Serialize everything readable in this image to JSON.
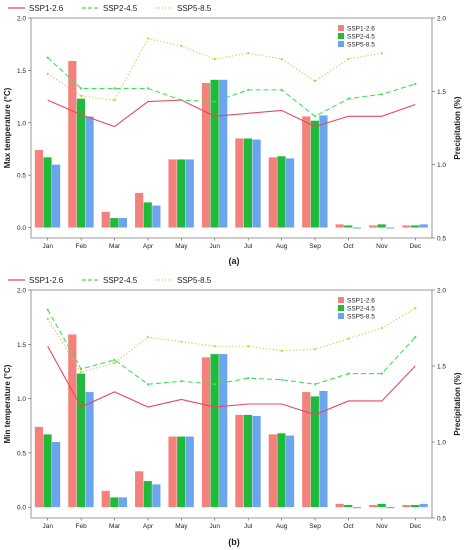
{
  "colors": {
    "ssp126": "#e5495f",
    "ssp245": "#3fe05a",
    "ssp585": "#d2c64a",
    "bar_ssp126": "#f4817b",
    "bar_ssp245": "#1fba3c",
    "bar_ssp585": "#6aa5ee"
  },
  "chart_data": [
    {
      "type": "bar",
      "panel_label": "(a)",
      "ylabel": "Max temperature (°C)",
      "y2label": "Precipitation (%)",
      "categories": [
        "Jan",
        "Feb",
        "Mar",
        "Apr",
        "May",
        "Jun",
        "Jul",
        "Aug",
        "Sep",
        "Oct",
        "Nov",
        "Dec"
      ],
      "ylim": [
        -0.1,
        2.0
      ],
      "y_ticks": [
        "0.0",
        "0.5",
        "1.0",
        "1.5",
        "2.0"
      ],
      "y2lim": [
        0.5,
        2.0
      ],
      "y2_ticks": [
        "0.5",
        "1.0",
        "1.5",
        "2.0"
      ],
      "top_legend": [
        {
          "key": "ssp126",
          "label": "SSP1-2.6"
        },
        {
          "key": "ssp245",
          "label": "SSP2-4.5"
        },
        {
          "key": "ssp585",
          "label": "SSP5-8.5"
        }
      ],
      "bar_legend": [
        {
          "key": "bar_ssp126",
          "label": "SSP1-2.6"
        },
        {
          "key": "bar_ssp245",
          "label": "SSP2-4.5"
        },
        {
          "key": "bar_ssp585",
          "label": "SSP5-8.5"
        }
      ],
      "bars": [
        {
          "name": "SSP1-2.6",
          "color_key": "bar_ssp126",
          "values": [
            0.74,
            1.59,
            0.15,
            0.33,
            0.65,
            1.38,
            0.85,
            0.67,
            1.06,
            0.03,
            0.02,
            0.02
          ]
        },
        {
          "name": "SSP2-4.5",
          "color_key": "bar_ssp245",
          "values": [
            0.67,
            1.23,
            0.09,
            0.24,
            0.65,
            1.41,
            0.85,
            0.68,
            1.02,
            0.02,
            0.03,
            0.02
          ]
        },
        {
          "name": "SSP5-8.5",
          "color_key": "bar_ssp585",
          "values": [
            0.6,
            1.06,
            0.09,
            0.21,
            0.65,
            1.41,
            0.84,
            0.66,
            1.07,
            -0.01,
            -0.01,
            0.03
          ]
        }
      ],
      "lines": [
        {
          "name": "SSP1-2.6",
          "color_key": "ssp126",
          "dash": "solid",
          "values": [
            1.44,
            1.34,
            1.26,
            1.43,
            1.44,
            1.33,
            1.35,
            1.37,
            1.26,
            1.33,
            1.33,
            1.41
          ]
        },
        {
          "name": "SSP2-4.5",
          "color_key": "ssp245",
          "dash": "dashed",
          "values": [
            1.73,
            1.52,
            1.52,
            1.52,
            1.44,
            1.43,
            1.51,
            1.51,
            1.33,
            1.45,
            1.48,
            1.55
          ]
        },
        {
          "name": "SSP5-8.5",
          "color_key": "ssp585",
          "dash": "dotted",
          "values": [
            1.62,
            1.47,
            1.44,
            1.86,
            1.81,
            1.72,
            1.76,
            1.72,
            1.57,
            1.72,
            1.76,
            null
          ]
        }
      ]
    },
    {
      "type": "bar",
      "panel_label": "(b)",
      "ylabel": "Min temperature (°C)",
      "y2label": "Precipitation (%)",
      "categories": [
        "Jan",
        "Feb",
        "Mar",
        "Apr",
        "May",
        "Jun",
        "Jul",
        "Aug",
        "Sep",
        "Oct",
        "Nov",
        "Dec"
      ],
      "ylim": [
        -0.1,
        2.0
      ],
      "y_ticks": [
        "0.0",
        "0.5",
        "1.0",
        "1.5",
        "2.0"
      ],
      "y2lim": [
        0.5,
        2.0
      ],
      "y2_ticks": [
        "0.5",
        "1.0",
        "1.5",
        "2.0"
      ],
      "top_legend": [
        {
          "key": "ssp126",
          "label": "SSP1-2.6"
        },
        {
          "key": "ssp245",
          "label": "SSP2-4.5"
        },
        {
          "key": "ssp585",
          "label": "SSP5-8.5"
        }
      ],
      "bar_legend": [
        {
          "key": "bar_ssp126",
          "label": "SSP1-2.6"
        },
        {
          "key": "bar_ssp245",
          "label": "SSP2-4.5"
        },
        {
          "key": "bar_ssp585",
          "label": "SSP5-8.5"
        }
      ],
      "bars": [
        {
          "name": "SSP1-2.6",
          "color_key": "bar_ssp126",
          "values": [
            0.74,
            1.59,
            0.15,
            0.33,
            0.65,
            1.38,
            0.85,
            0.67,
            1.06,
            0.03,
            0.02,
            0.02
          ]
        },
        {
          "name": "SSP2-4.5",
          "color_key": "bar_ssp245",
          "values": [
            0.67,
            1.23,
            0.09,
            0.24,
            0.65,
            1.41,
            0.85,
            0.68,
            1.02,
            0.02,
            0.03,
            0.02
          ]
        },
        {
          "name": "SSP5-8.5",
          "color_key": "bar_ssp585",
          "values": [
            0.6,
            1.06,
            0.09,
            0.21,
            0.65,
            1.41,
            0.84,
            0.66,
            1.07,
            -0.01,
            -0.01,
            0.03
          ]
        }
      ],
      "lines": [
        {
          "name": "SSP1-2.6",
          "color_key": "ssp126",
          "dash": "solid",
          "values": [
            1.63,
            1.23,
            1.33,
            1.23,
            1.28,
            1.23,
            1.25,
            1.25,
            1.18,
            1.27,
            1.27,
            1.5
          ]
        },
        {
          "name": "SSP2-4.5",
          "color_key": "ssp245",
          "dash": "dashed",
          "values": [
            1.87,
            1.48,
            1.54,
            1.38,
            1.4,
            1.38,
            1.42,
            1.41,
            1.38,
            1.45,
            1.45,
            1.69
          ]
        },
        {
          "name": "SSP5-8.5",
          "color_key": "ssp585",
          "dash": "dotted",
          "values": [
            1.81,
            1.46,
            1.52,
            1.69,
            1.66,
            1.63,
            1.63,
            1.6,
            1.61,
            1.68,
            1.75,
            1.88
          ]
        }
      ]
    }
  ]
}
